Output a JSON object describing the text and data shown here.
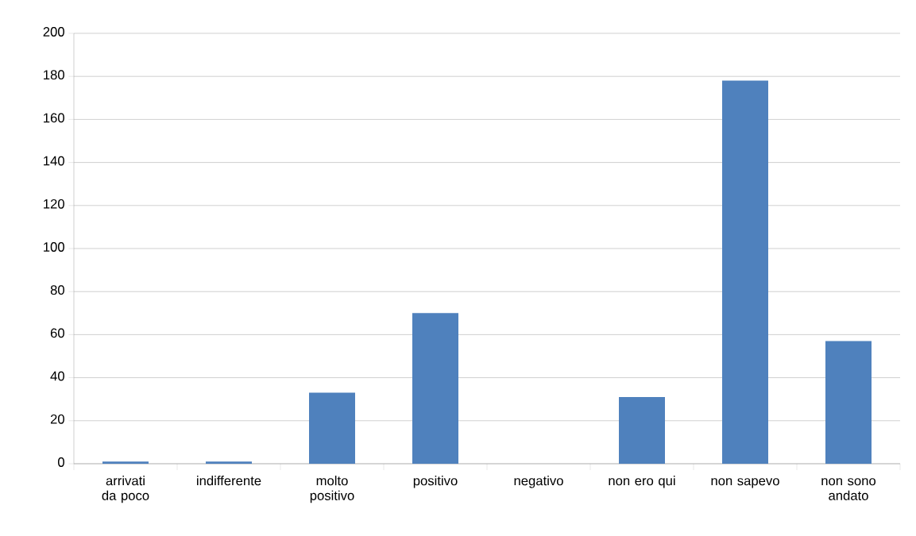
{
  "chart_data": {
    "type": "bar",
    "categories": [
      "arrivati da poco",
      "indifferente",
      "molto positivo",
      "positivo",
      "negativo",
      "non ero qui",
      "non sapevo",
      "non sono andato"
    ],
    "values": [
      1,
      1,
      33,
      70,
      0,
      31,
      178,
      57
    ],
    "color": "#4f81bd",
    "ylim": [
      0,
      200
    ],
    "yticks": [
      0,
      20,
      40,
      60,
      80,
      100,
      120,
      140,
      160,
      180,
      200
    ],
    "grid": "y"
  }
}
